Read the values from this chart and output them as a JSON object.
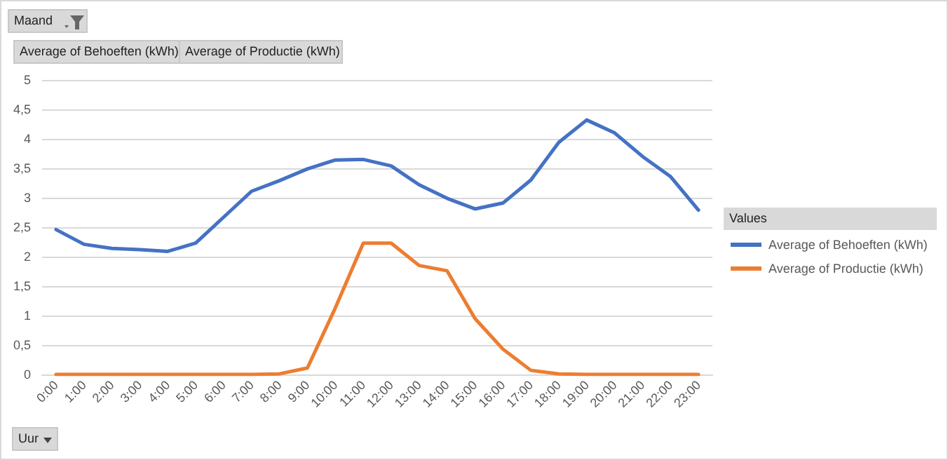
{
  "chart_data": {
    "type": "line",
    "categories": [
      "0:00",
      "1:00",
      "2:00",
      "3:00",
      "4:00",
      "5:00",
      "6:00",
      "7:00",
      "8:00",
      "9:00",
      "10:00",
      "11:00",
      "12:00",
      "13:00",
      "14:00",
      "15:00",
      "16:00",
      "17:00",
      "18:00",
      "19:00",
      "20:00",
      "21:00",
      "22:00",
      "23:00"
    ],
    "series": [
      {
        "name": "Average of Behoeften (kWh)",
        "color": "#4472c4",
        "values": [
          2.46,
          2.21,
          2.14,
          2.12,
          2.09,
          2.23,
          2.67,
          3.11,
          3.29,
          3.49,
          3.64,
          3.65,
          3.54,
          3.22,
          2.99,
          2.81,
          2.91,
          3.3,
          3.94,
          4.32,
          4.1,
          3.7,
          3.36,
          2.79
        ]
      },
      {
        "name": "Average of Productie (kWh)",
        "color": "#ed7d31",
        "values": [
          0,
          0,
          0,
          0,
          0,
          0,
          0,
          0,
          0.01,
          0.11,
          1.13,
          2.23,
          2.23,
          1.85,
          1.76,
          0.95,
          0.43,
          0.07,
          0.01,
          0,
          0,
          0,
          0,
          0
        ]
      }
    ],
    "ylim": [
      0,
      5
    ],
    "yticks": [
      0,
      {
        "value": 0.5,
        "label": "0,5"
      },
      1,
      {
        "value": 1.5,
        "label": "1,5"
      },
      2,
      {
        "value": 2.5,
        "label": "2,5"
      },
      3,
      {
        "value": 3.5,
        "label": "3,5"
      },
      4,
      {
        "value": 4.5,
        "label": "4,5"
      },
      5
    ],
    "grid": "y",
    "legend": "right",
    "legend_title": "Values",
    "marker": "none",
    "line_style": "solid",
    "annotations": [
      "Maand",
      "Average of Behoeften (kWh)",
      "Average of Productie (kWh)",
      "Uur"
    ]
  }
}
